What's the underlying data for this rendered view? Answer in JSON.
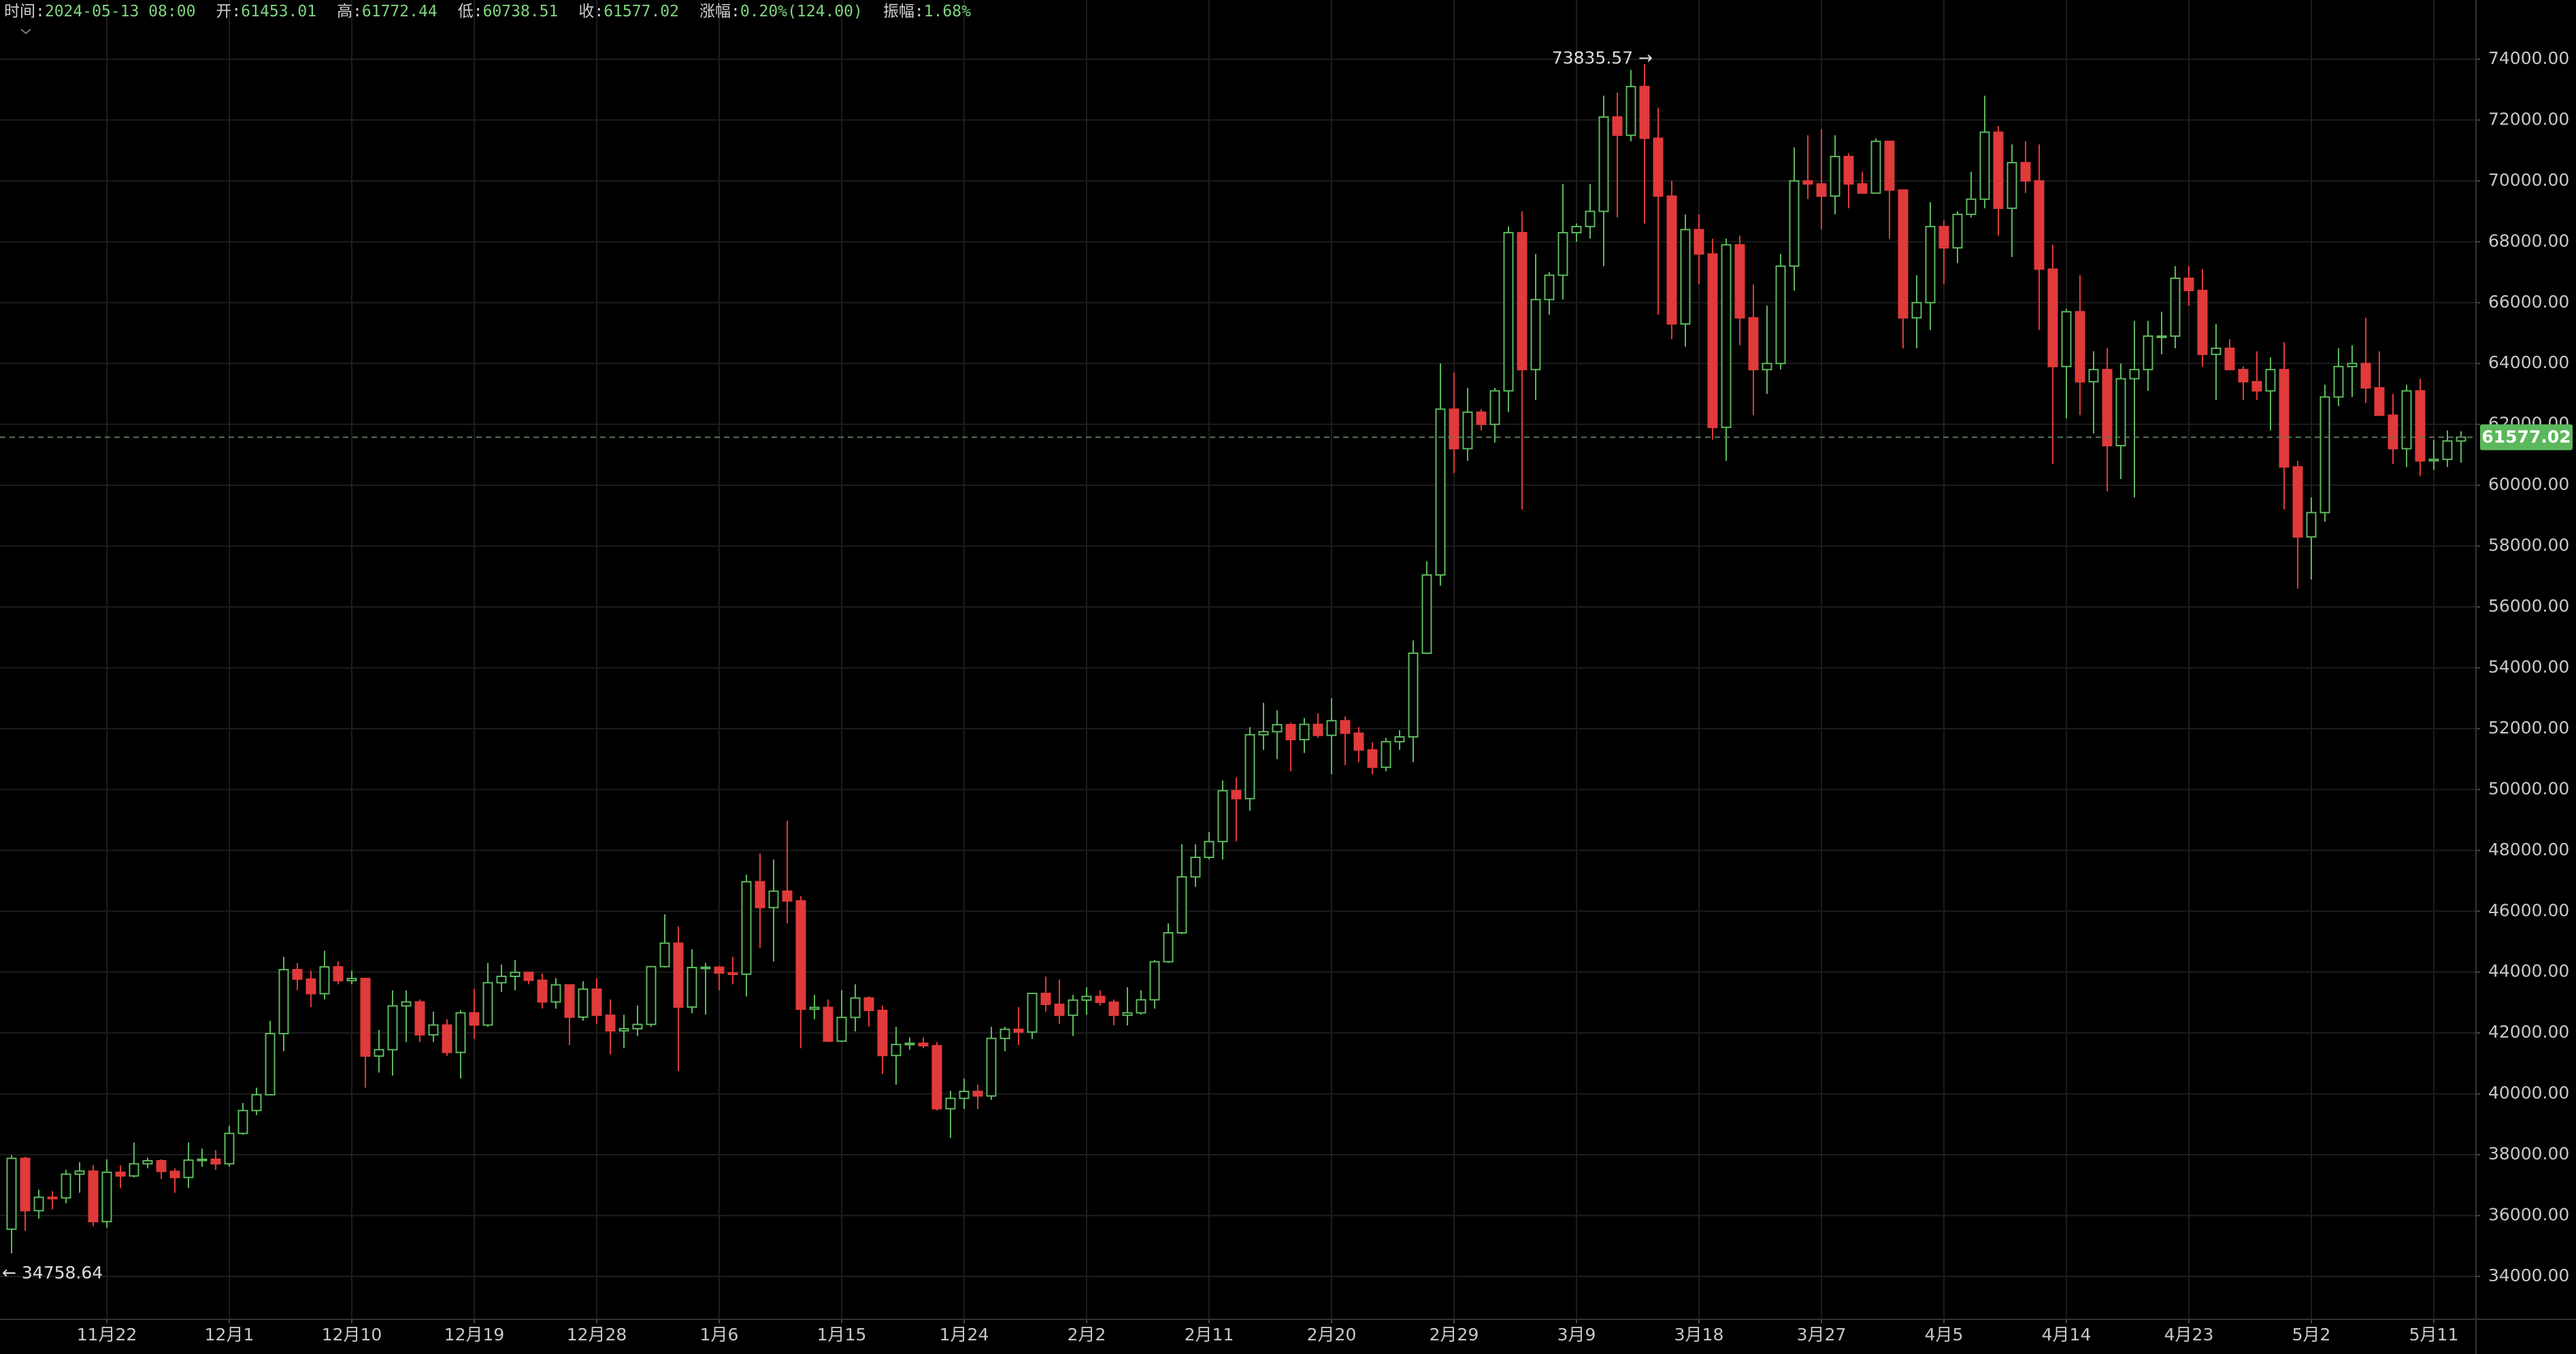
{
  "chart_data": {
    "type": "candlestick",
    "header": [
      {
        "label": "时间:",
        "value": "2024-05-13 08:00"
      },
      {
        "label": "开:",
        "value": "61453.01"
      },
      {
        "label": "高:",
        "value": "61772.44"
      },
      {
        "label": "低:",
        "value": "60738.51"
      },
      {
        "label": "收:",
        "value": "61577.02"
      },
      {
        "label": "涨幅:",
        "value": "0.20%(124.00)"
      },
      {
        "label": "振幅:",
        "value": "1.68%"
      }
    ],
    "categories": [
      null,
      null,
      null,
      null,
      null,
      null,
      null,
      "11月22",
      null,
      null,
      null,
      null,
      null,
      null,
      null,
      null,
      "12月1",
      null,
      null,
      null,
      null,
      null,
      null,
      null,
      null,
      "12月10",
      null,
      null,
      null,
      null,
      null,
      null,
      null,
      null,
      "12月19",
      null,
      null,
      null,
      null,
      null,
      null,
      null,
      null,
      "12月28",
      null,
      null,
      null,
      null,
      null,
      null,
      null,
      null,
      "1月6",
      null,
      null,
      null,
      null,
      null,
      null,
      null,
      null,
      "1月15",
      null,
      null,
      null,
      null,
      null,
      null,
      null,
      null,
      "1月24",
      null,
      null,
      null,
      null,
      null,
      null,
      null,
      null,
      "2月2",
      null,
      null,
      null,
      null,
      null,
      null,
      null,
      null,
      "2月11",
      null,
      null,
      null,
      null,
      null,
      null,
      null,
      null,
      "2月20",
      null,
      null,
      null,
      null,
      null,
      null,
      null,
      null,
      "2月29",
      null,
      null,
      null,
      null,
      null,
      null,
      null,
      null,
      "3月9",
      null,
      null,
      null,
      null,
      null,
      null,
      null,
      null,
      "3月18",
      null,
      null,
      null,
      null,
      null,
      null,
      null,
      null,
      "3月27",
      null,
      null,
      null,
      null,
      null,
      null,
      null,
      null,
      "4月5",
      null,
      null,
      null,
      null,
      null,
      null,
      null,
      null,
      "4月14",
      null,
      null,
      null,
      null,
      null,
      null,
      null,
      null,
      "4月23",
      null,
      null,
      null,
      null,
      null,
      null,
      null,
      null,
      "5月2",
      null,
      null,
      null,
      null,
      null,
      null,
      null,
      null,
      "5月11",
      null,
      null
    ],
    "open": [
      35550,
      37880,
      36160,
      36600,
      36580,
      37360,
      37460,
      35800,
      37420,
      37300,
      37700,
      37800,
      37450,
      37250,
      37820,
      37850,
      37700,
      38700,
      39450,
      39970,
      41980,
      44080,
      43770,
      43290,
      44170,
      43720,
      43790,
      41240,
      41450,
      42890,
      43020,
      41940,
      42260,
      41360,
      42660,
      42260,
      43650,
      43860,
      43990,
      43730,
      43020,
      43580,
      42520,
      43440,
      42580,
      42070,
      42140,
      42280,
      44180,
      44950,
      42850,
      44150,
      44160,
      43970,
      43930,
      46970,
      46120,
      46660,
      46340,
      42780,
      42840,
      41730,
      42510,
      43150,
      42740,
      41260,
      41620,
      41660,
      41580,
      39510,
      39850,
      40080,
      39930,
      41820,
      42120,
      42030,
      43300,
      42940,
      42580,
      43080,
      43200,
      43010,
      42580,
      42660,
      43090,
      44340,
      45290,
      47130,
      47770,
      48290,
      49960,
      49700,
      51800,
      51900,
      52130,
      51640,
      52140,
      51780,
      52260,
      51850,
      51300,
      50730,
      51570,
      51730,
      54480,
      57050,
      62500,
      61200,
      62400,
      62000,
      63100,
      68300,
      63800,
      66100,
      66900,
      68300,
      68500,
      69000,
      72100,
      71500,
      73100,
      71400,
      69500,
      65300,
      68400,
      67600,
      61900,
      67900,
      65500,
      63800,
      64000,
      67200,
      70000,
      69900,
      69500,
      70800,
      69900,
      69600,
      71300,
      69700,
      65500,
      66000,
      68500,
      67800,
      68900,
      69400,
      71600,
      69100,
      70600,
      70000,
      67100,
      63900,
      65700,
      63400,
      63800,
      61300,
      63500,
      63800,
      64900,
      64900,
      66800,
      66400,
      64300,
      64500,
      63800,
      63400,
      63100,
      63800,
      60600,
      58300,
      59100,
      62900,
      63900,
      64000,
      63200,
      62300,
      61200,
      63100,
      60800,
      60850,
      61453.01
    ],
    "high": [
      37980,
      37930,
      36850,
      36800,
      37500,
      37750,
      37650,
      37850,
      37650,
      38400,
      37900,
      37850,
      37550,
      38400,
      38200,
      38150,
      38950,
      39700,
      40200,
      42400,
      44500,
      44300,
      44050,
      44700,
      44350,
      44050,
      43800,
      42100,
      43400,
      43400,
      43100,
      42700,
      42450,
      42750,
      43450,
      44300,
      44250,
      44400,
      44000,
      43950,
      43800,
      43600,
      43700,
      43800,
      43100,
      42600,
      42900,
      44200,
      45900,
      45500,
      44750,
      44300,
      44200,
      44500,
      47200,
      47900,
      47700,
      48970,
      46500,
      43250,
      43100,
      43400,
      43600,
      43200,
      42900,
      42200,
      41850,
      41850,
      41700,
      40100,
      40500,
      40300,
      42200,
      42200,
      42850,
      43300,
      43850,
      43750,
      43250,
      43500,
      43400,
      43100,
      43500,
      43400,
      44400,
      45600,
      48200,
      48200,
      48600,
      50300,
      50400,
      52050,
      52850,
      52600,
      52200,
      52350,
      52500,
      53000,
      52400,
      52050,
      51550,
      51700,
      51950,
      54900,
      57500,
      64000,
      63700,
      63200,
      62500,
      63200,
      68500,
      69000,
      67600,
      67000,
      69900,
      68600,
      69900,
      72800,
      72900,
      73650,
      73835.57,
      72400,
      70000,
      68900,
      68900,
      68100,
      68100,
      68200,
      66600,
      65900,
      67600,
      71100,
      71500,
      71700,
      71500,
      70900,
      70300,
      71400,
      71300,
      69700,
      66900,
      69300,
      68700,
      69000,
      70300,
      72800,
      71800,
      71200,
      71300,
      71200,
      67900,
      65800,
      66900,
      64400,
      64500,
      64000,
      65400,
      65400,
      65700,
      67200,
      67200,
      67100,
      65300,
      64800,
      63900,
      64400,
      64200,
      64700,
      60800,
      59600,
      63300,
      64500,
      64600,
      65500,
      64400,
      63000,
      63300,
      63500,
      61500,
      61800,
      61772.44
    ],
    "low": [
      34758.64,
      35500,
      35900,
      36200,
      36400,
      36750,
      35650,
      35600,
      36900,
      37250,
      37550,
      37200,
      36750,
      36900,
      37600,
      37500,
      37600,
      38650,
      39300,
      39950,
      41400,
      43400,
      42850,
      43100,
      43600,
      43600,
      40200,
      40700,
      40600,
      41700,
      41700,
      41700,
      41250,
      40500,
      41800,
      42200,
      43350,
      43400,
      43600,
      42800,
      42800,
      41600,
      42400,
      42300,
      41300,
      41500,
      41900,
      42200,
      44150,
      40750,
      42650,
      42600,
      43400,
      43600,
      43200,
      44800,
      44350,
      45600,
      41500,
      42450,
      41700,
      41700,
      42050,
      42200,
      40650,
      40300,
      41450,
      41500,
      39450,
      38550,
      39500,
      39500,
      39800,
      41400,
      41600,
      41800,
      42700,
      42300,
      41900,
      42600,
      42900,
      42250,
      42250,
      42600,
      42800,
      44300,
      45250,
      46800,
      47700,
      47700,
      48300,
      49300,
      51300,
      51000,
      50600,
      51200,
      51700,
      50500,
      50800,
      50900,
      50500,
      50600,
      51300,
      50900,
      54450,
      56700,
      60400,
      60800,
      61800,
      61400,
      62400,
      59200,
      62800,
      65600,
      66100,
      68000,
      68100,
      67200,
      68800,
      71300,
      68600,
      65600,
      64800,
      64550,
      66600,
      61500,
      60800,
      64600,
      62300,
      63000,
      63800,
      66400,
      69400,
      68400,
      68900,
      69100,
      69600,
      69600,
      68100,
      64500,
      64500,
      65100,
      66600,
      67300,
      68800,
      69100,
      68200,
      67500,
      69600,
      65100,
      60700,
      62200,
      62300,
      61700,
      59800,
      60200,
      59600,
      63100,
      64300,
      64500,
      65900,
      63900,
      62800,
      63800,
      62800,
      62800,
      61800,
      59200,
      56600,
      56900,
      58800,
      62600,
      62900,
      62700,
      62300,
      60700,
      60600,
      60300,
      60500,
      60600,
      60738.51
    ],
    "close": [
      37880,
      36160,
      36600,
      36580,
      37360,
      37460,
      35800,
      37420,
      37300,
      37700,
      37800,
      37450,
      37250,
      37820,
      37850,
      37700,
      38700,
      39450,
      39970,
      41980,
      44080,
      43770,
      43290,
      44170,
      43720,
      43790,
      41240,
      41450,
      42890,
      43020,
      41940,
      42260,
      41360,
      42660,
      42260,
      43650,
      43860,
      43990,
      43730,
      43020,
      43580,
      42520,
      43440,
      42580,
      42070,
      42140,
      42280,
      44180,
      44950,
      42850,
      44150,
      44160,
      43970,
      43930,
      46970,
      46120,
      46660,
      46340,
      42780,
      42840,
      41730,
      42510,
      43150,
      42740,
      41260,
      41620,
      41660,
      41580,
      39510,
      39850,
      40080,
      39930,
      41820,
      42120,
      42030,
      43300,
      42940,
      42580,
      43080,
      43200,
      43010,
      42580,
      42660,
      43090,
      44340,
      45290,
      47130,
      47770,
      48290,
      49960,
      49700,
      51800,
      51900,
      52130,
      51640,
      52140,
      51780,
      52260,
      51850,
      51300,
      50730,
      51570,
      51730,
      54480,
      57050,
      62500,
      61200,
      62400,
      62000,
      63100,
      68300,
      63800,
      66100,
      66900,
      68300,
      68500,
      69000,
      72100,
      71500,
      73100,
      71400,
      69500,
      65300,
      68400,
      67600,
      61900,
      67900,
      65500,
      63800,
      64000,
      67200,
      70000,
      69900,
      69500,
      70800,
      69900,
      69600,
      71300,
      69700,
      65500,
      66000,
      68500,
      67800,
      68900,
      69400,
      71600,
      69100,
      70600,
      70000,
      67100,
      63900,
      65700,
      63400,
      63800,
      61300,
      63500,
      63800,
      64900,
      64900,
      66800,
      66400,
      64300,
      64500,
      63800,
      63400,
      63100,
      63800,
      60600,
      58300,
      59100,
      62900,
      63900,
      64000,
      63200,
      62300,
      61200,
      63100,
      60800,
      60850,
      61453.01,
      61577.02
    ],
    "up_color": "#5cb85c",
    "down_color": "#e03a3a",
    "ylim": [
      32590,
      75945
    ],
    "yticks": [
      {
        "value": 34000,
        "label": "34000.00"
      },
      {
        "value": 36000,
        "label": "36000.00"
      },
      {
        "value": 38000,
        "label": "38000.00"
      },
      {
        "value": 40000,
        "label": "40000.00"
      },
      {
        "value": 42000,
        "label": "42000.00"
      },
      {
        "value": 44000,
        "label": "44000.00"
      },
      {
        "value": 46000,
        "label": "46000.00"
      },
      {
        "value": 48000,
        "label": "48000.00"
      },
      {
        "value": 50000,
        "label": "50000.00"
      },
      {
        "value": 52000,
        "label": "52000.00"
      },
      {
        "value": 54000,
        "label": "54000.00"
      },
      {
        "value": 56000,
        "label": "56000.00"
      },
      {
        "value": 58000,
        "label": "58000.00"
      },
      {
        "value": 60000,
        "label": "60000.00"
      },
      {
        "value": 62000,
        "label": "62000.00"
      },
      {
        "value": 64000,
        "label": "64000.00"
      },
      {
        "value": 66000,
        "label": "66000.00"
      },
      {
        "value": 68000,
        "label": "68000.00"
      },
      {
        "value": 70000,
        "label": "70000.00"
      },
      {
        "value": 72000,
        "label": "72000.00"
      },
      {
        "value": 74000,
        "label": "74000.00"
      }
    ],
    "grid": true,
    "last_price": {
      "value": 61577.02,
      "label": "61577.02"
    },
    "annotations": {
      "high": "73835.57 →",
      "low": "← 34758.64"
    }
  }
}
